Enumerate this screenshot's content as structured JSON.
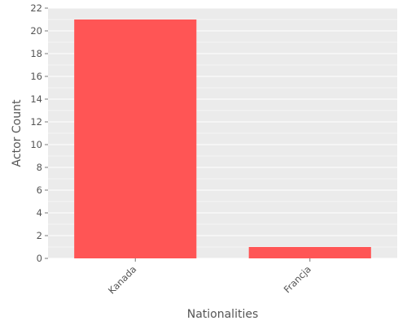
{
  "chart_data": {
    "type": "bar",
    "categories": [
      "Kanada",
      "Francja"
    ],
    "values": [
      21,
      1
    ],
    "xlabel": "Nationalities",
    "ylabel": "Actor Count",
    "ylim": [
      0,
      22
    ],
    "yticks": [
      0,
      2,
      4,
      6,
      8,
      10,
      12,
      14,
      16,
      18,
      20,
      22
    ],
    "grid": true,
    "legend": "none",
    "colors": {
      "bar": "#ff5555",
      "panel_background": "#ebebeb",
      "gridline": "#ffffff",
      "text": "#555555"
    }
  }
}
